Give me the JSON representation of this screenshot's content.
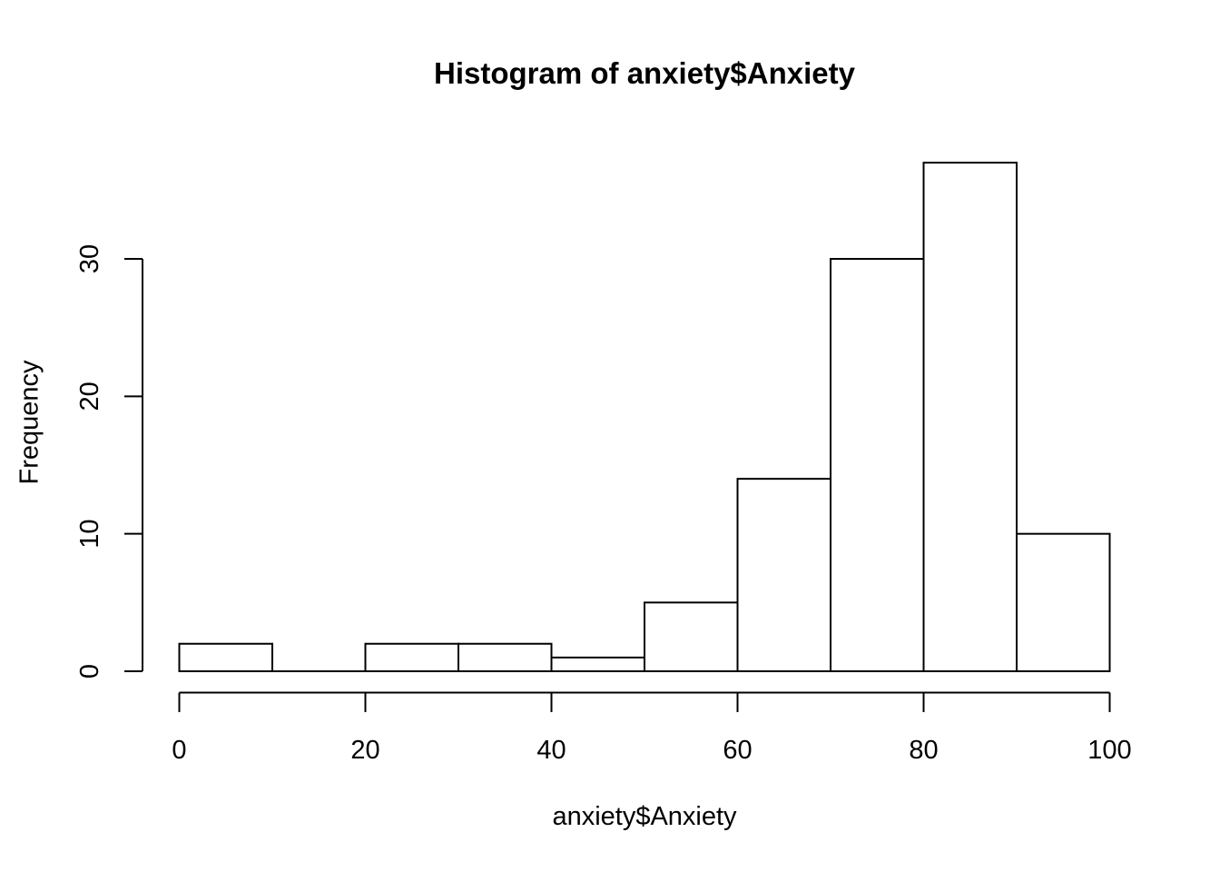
{
  "chart_data": {
    "type": "bar",
    "subtype": "histogram",
    "title": "Histogram of anxiety$Anxiety",
    "xlabel": "anxiety$Anxiety",
    "ylabel": "Frequency",
    "bin_width": 10,
    "bin_edges": [
      0,
      10,
      20,
      30,
      40,
      50,
      60,
      70,
      80,
      90,
      100
    ],
    "categories": [
      "0-10",
      "10-20",
      "20-30",
      "30-40",
      "40-50",
      "50-60",
      "60-70",
      "70-80",
      "80-90",
      "90-100"
    ],
    "values": [
      2,
      0,
      2,
      2,
      1,
      5,
      14,
      30,
      37,
      10
    ],
    "xlim": [
      0,
      100
    ],
    "ylim": [
      0,
      37
    ],
    "x_ticks": [
      0,
      20,
      40,
      60,
      80,
      100
    ],
    "y_ticks": [
      0,
      10,
      20,
      30
    ],
    "grid": false,
    "legend": "none",
    "colors": {
      "bar_fill": "#ffffff",
      "bar_stroke": "#000000",
      "axis": "#000000",
      "text": "#000000",
      "background": "#ffffff"
    }
  }
}
